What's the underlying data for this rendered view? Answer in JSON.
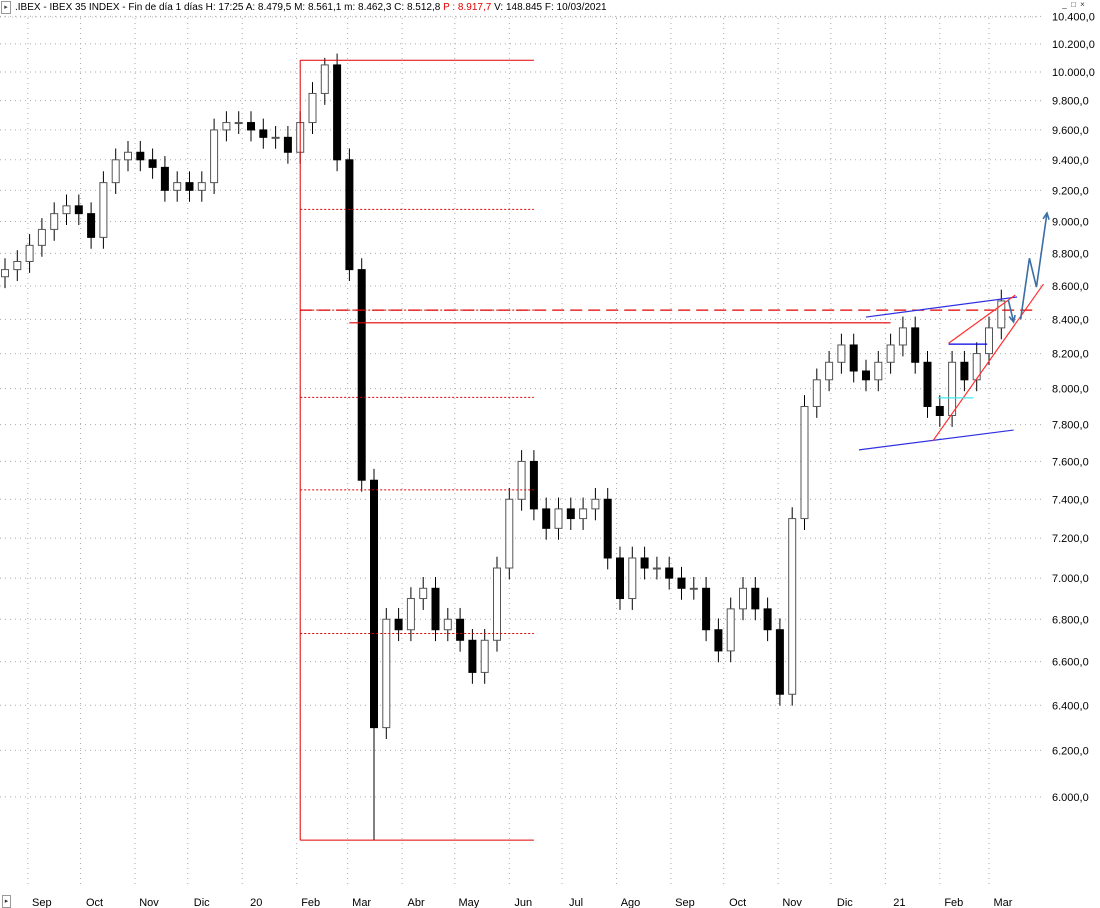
{
  "header": {
    "symbol": ".IBEX - IBEX 35 INDEX - Fin de día 1 días",
    "h": "H: 17:25",
    "a": "A: 8.479,5",
    "m_high": "M: 8.561,1",
    "m_low": "m: 8.462,3",
    "c": "C: 8.512,8",
    "p": "P : 8.917,7",
    "v": "V: 148.845",
    "f": "F: 10/03/2021",
    "p_color": "#e00000"
  },
  "window_controls": [
    "_",
    "□",
    "×"
  ],
  "chart_data": {
    "type": "candlestick",
    "title": "",
    "y_scale": "log",
    "ylim": [
      5800,
      10450
    ],
    "y_ticks": [
      6000,
      6200,
      6400,
      6600,
      6800,
      7000,
      7200,
      7400,
      7600,
      7800,
      8000,
      8200,
      8400,
      8600,
      8800,
      9000,
      9200,
      9400,
      9600,
      9800,
      10000,
      10200,
      10400
    ],
    "y_tick_labels": [
      "6.000,0",
      "6.200,0",
      "6.400,0",
      "6.600,0",
      "6.800,0",
      "7.000,0",
      "7.200,0",
      "7.400,0",
      "7.600,0",
      "7.800,0",
      "8.000,0",
      "8.200,0",
      "8.400,0",
      "8.600,0",
      "8.800,0",
      "9.000,0",
      "9.200,0",
      "9.400,0",
      "9.600,0",
      "9.800,0",
      "10.000,0",
      "10.200,0",
      "10.400,0"
    ],
    "x_ticks": [
      {
        "date": "2019-09-01",
        "label": "Sep"
      },
      {
        "date": "2019-10-01",
        "label": "Oct"
      },
      {
        "date": "2019-11-01",
        "label": "Nov"
      },
      {
        "date": "2019-12-01",
        "label": "Dic"
      },
      {
        "date": "2020-01-01",
        "label": "20"
      },
      {
        "date": "2020-02-01",
        "label": "Feb"
      },
      {
        "date": "2020-03-01",
        "label": "Mar"
      },
      {
        "date": "2020-04-01",
        "label": "Abr"
      },
      {
        "date": "2020-05-01",
        "label": "May"
      },
      {
        "date": "2020-06-01",
        "label": "Jun"
      },
      {
        "date": "2020-07-01",
        "label": "Jul"
      },
      {
        "date": "2020-08-01",
        "label": "Ago"
      },
      {
        "date": "2020-09-01",
        "label": "Sep"
      },
      {
        "date": "2020-10-01",
        "label": "Oct"
      },
      {
        "date": "2020-11-01",
        "label": "Nov"
      },
      {
        "date": "2020-12-01",
        "label": "Dic"
      },
      {
        "date": "2021-01-01",
        "label": "21"
      },
      {
        "date": "2021-02-01",
        "label": "Feb"
      },
      {
        "date": "2021-03-01",
        "label": "Mar"
      }
    ],
    "grid": true,
    "dates": [
      "2019-08-19",
      "2019-08-26",
      "2019-09-02",
      "2019-09-09",
      "2019-09-16",
      "2019-09-23",
      "2019-09-30",
      "2019-10-07",
      "2019-10-14",
      "2019-10-21",
      "2019-10-28",
      "2019-11-04",
      "2019-11-11",
      "2019-11-18",
      "2019-11-25",
      "2019-12-02",
      "2019-12-09",
      "2019-12-16",
      "2019-12-23",
      "2019-12-30",
      "2020-01-06",
      "2020-01-13",
      "2020-01-20",
      "2020-01-27",
      "2020-02-03",
      "2020-02-10",
      "2020-02-17",
      "2020-02-24",
      "2020-03-02",
      "2020-03-09",
      "2020-03-16",
      "2020-03-23",
      "2020-03-30",
      "2020-04-06",
      "2020-04-13",
      "2020-04-20",
      "2020-04-27",
      "2020-05-04",
      "2020-05-11",
      "2020-05-18",
      "2020-05-25",
      "2020-06-01",
      "2020-06-08",
      "2020-06-15",
      "2020-06-22",
      "2020-06-29",
      "2020-07-06",
      "2020-07-13",
      "2020-07-20",
      "2020-07-27",
      "2020-08-03",
      "2020-08-10",
      "2020-08-17",
      "2020-08-24",
      "2020-08-31",
      "2020-09-07",
      "2020-09-14",
      "2020-09-21",
      "2020-09-28",
      "2020-10-05",
      "2020-10-12",
      "2020-10-19",
      "2020-10-26",
      "2020-11-02",
      "2020-11-09",
      "2020-11-16",
      "2020-11-23",
      "2020-11-30",
      "2020-12-07",
      "2020-12-14",
      "2020-12-21",
      "2020-12-28",
      "2021-01-04",
      "2021-01-11",
      "2021-01-18",
      "2021-01-25",
      "2021-02-01",
      "2021-02-08",
      "2021-02-15",
      "2021-02-22",
      "2021-03-01",
      "2021-03-08"
    ],
    "closes": [
      8700,
      8750,
      8850,
      8950,
      9050,
      9100,
      9050,
      8900,
      9250,
      9400,
      9450,
      9400,
      9350,
      9200,
      9250,
      9200,
      9250,
      9600,
      9650,
      9650,
      9600,
      9550,
      9550,
      9450,
      9650,
      9850,
      10050,
      9400,
      8700,
      7500,
      6300,
      6800,
      6750,
      6900,
      6950,
      6750,
      6800,
      6700,
      6550,
      6700,
      7050,
      7400,
      7600,
      7350,
      7250,
      7350,
      7300,
      7350,
      7400,
      7100,
      6900,
      7100,
      7050,
      7050,
      7000,
      6950,
      6950,
      6750,
      6650,
      6850,
      6950,
      6850,
      6750,
      6450,
      7300,
      7900,
      8050,
      8150,
      8250,
      8100,
      8050,
      8150,
      8250,
      8350,
      8150,
      7900,
      7850,
      8150,
      8050,
      8200,
      8350,
      8510
    ],
    "extremes": {
      "high": {
        "date": "2020-02-17",
        "value": 10100
      },
      "low": {
        "date": "2020-03-16",
        "value": 5820
      }
    },
    "annotations": {
      "fibonacci": {
        "color": "#e00000",
        "start": "2020-02-03",
        "end": "2020-06-15",
        "high": 10083,
        "low": 5820,
        "levels": [
          9077,
          8455,
          7951,
          7449,
          6732
        ]
      },
      "lines": [
        {
          "name": "resistance-dashed",
          "color": "#e00000",
          "dash": true,
          "p1": [
            "2020-02-03",
            8455
          ],
          "p2": [
            "2021-03-29",
            8455
          ]
        },
        {
          "name": "resistance-solid",
          "color": "#e00000",
          "p1": [
            "2020-03-02",
            8380
          ],
          "p2": [
            "2021-01-04",
            8380
          ]
        },
        {
          "name": "channel-upper",
          "color": "#3030e0",
          "p1": [
            "2020-12-21",
            8414
          ],
          "p2": [
            "2021-03-17",
            8534
          ]
        },
        {
          "name": "channel-lower",
          "color": "#3030e0",
          "p1": [
            "2020-12-17",
            7662
          ],
          "p2": [
            "2021-03-15",
            7770
          ]
        },
        {
          "name": "wedge-support",
          "color": "#ff3030",
          "p1": [
            "2021-01-28",
            7710
          ],
          "p2": [
            "2021-04-01",
            8612
          ]
        },
        {
          "name": "wedge-upper",
          "color": "#ff3030",
          "p1": [
            "2021-02-06",
            8260
          ],
          "p2": [
            "2021-03-16",
            8546
          ]
        },
        {
          "name": "range-top",
          "color": "#0000e0",
          "p1": [
            "2021-02-06",
            8255
          ],
          "p2": [
            "2021-02-28",
            8255
          ]
        },
        {
          "name": "range-bottom",
          "color": "#40e8f0",
          "p1": [
            "2021-01-31",
            7948
          ],
          "p2": [
            "2021-02-20",
            7948
          ]
        }
      ],
      "projections": [
        {
          "name": "projection-pullback",
          "color": "#3a6ea5",
          "points": [
            [
              "2021-03-12",
              8516
            ],
            [
              "2021-03-15",
              8385
            ]
          ]
        },
        {
          "name": "projection-rally",
          "color": "#3a6ea5",
          "points": [
            [
              "2021-03-19",
              8400
            ],
            [
              "2021-03-24",
              8770
            ],
            [
              "2021-03-28",
              8594
            ],
            [
              "2021-04-03",
              9054
            ]
          ]
        }
      ]
    }
  }
}
